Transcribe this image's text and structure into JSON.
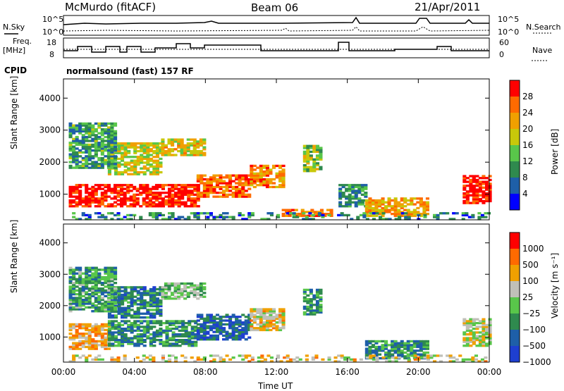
{
  "header": {
    "station": "McMurdo (fitACF)",
    "beam": "Beam 06",
    "date": "21/Apr/2011"
  },
  "summary_panels": {
    "nsky_label": "N.Sky",
    "nsky_ticks": [
      "10^5",
      "10^0"
    ],
    "nsearch_label": "N.Search",
    "nsearch_ticks": [
      "10^5",
      "10^0"
    ],
    "freq_label_1": "Freq.",
    "freq_label_2": "[MHz]",
    "freq_ticks": [
      "18",
      "8"
    ],
    "nave_label": "Nave",
    "nave_ticks": [
      "60",
      "0"
    ],
    "cpid_label": "CPID",
    "cpid_text": "normalsound (fast) 157 RF"
  },
  "chart_data": [
    {
      "type": "heatmap",
      "panel": "power",
      "ylabel": "Slant Range [km]",
      "yticks": [
        "4000",
        "3000",
        "2000",
        "1000"
      ],
      "ylim": [
        200,
        4600
      ],
      "colorbar_label": "Power [dB]",
      "colorbar_ticks": [
        "28",
        "24",
        "20",
        "16",
        "12",
        "8",
        "4"
      ],
      "colors": [
        "#0000ff",
        "#1e5fa8",
        "#2f8a4e",
        "#59c64a",
        "#c8c80a",
        "#f0a000",
        "#ff6a00",
        "#ff0000"
      ],
      "regions": [
        {
          "t": [
            0.3,
            7.5
          ],
          "r": [
            600,
            1300
          ],
          "level": 0.95
        },
        {
          "t": [
            7.5,
            10.5
          ],
          "r": [
            900,
            1600
          ],
          "level": 0.8
        },
        {
          "t": [
            10.5,
            12.3
          ],
          "r": [
            1200,
            1900
          ],
          "level": 0.75
        },
        {
          "t": [
            2.5,
            5.5
          ],
          "r": [
            1600,
            2600
          ],
          "level": 0.55
        },
        {
          "t": [
            0.3,
            3.0
          ],
          "r": [
            1800,
            3200
          ],
          "level": 0.35
        },
        {
          "t": [
            5.5,
            8.0
          ],
          "r": [
            2200,
            2700
          ],
          "level": 0.6
        },
        {
          "t": [
            13.5,
            14.5
          ],
          "r": [
            1700,
            2500
          ],
          "level": 0.5
        },
        {
          "t": [
            15.5,
            17.0
          ],
          "r": [
            600,
            1300
          ],
          "level": 0.3
        },
        {
          "t": [
            17.0,
            20.5
          ],
          "r": [
            300,
            900
          ],
          "level": 0.7
        },
        {
          "t": [
            12.3,
            15.0
          ],
          "r": [
            300,
            500
          ],
          "level": 0.8
        },
        {
          "t": [
            22.5,
            24.0
          ],
          "r": [
            700,
            1600
          ],
          "level": 0.95
        },
        {
          "t": [
            0.3,
            24.0
          ],
          "r": [
            200,
            400
          ],
          "level": 0.25
        }
      ]
    },
    {
      "type": "heatmap",
      "panel": "velocity",
      "xlabel": "Time UT",
      "xticks": [
        "00:00",
        "04:00",
        "08:00",
        "12:00",
        "16:00",
        "20:00",
        "00:00"
      ],
      "xlim": [
        0,
        24
      ],
      "ylabel": "Slant Range [km]",
      "yticks": [
        "4000",
        "3000",
        "2000",
        "1000"
      ],
      "ylim": [
        200,
        4600
      ],
      "colorbar_label": "Velocity [m s⁻¹]",
      "colorbar_ticks": [
        "1000",
        "500",
        "100",
        "25",
        "−25",
        "−100",
        "−500",
        "−1000"
      ],
      "colors": [
        "#1e3fd0",
        "#1e5fa8",
        "#2f8a4e",
        "#59c64a",
        "#c0c0b8",
        "#f0a000",
        "#ff6a00",
        "#ff0000"
      ],
      "regions": [
        {
          "t": [
            0.3,
            2.5
          ],
          "r": [
            600,
            1400
          ],
          "level": 0.7
        },
        {
          "t": [
            2.5,
            7.5
          ],
          "r": [
            700,
            1500
          ],
          "level": 0.3
        },
        {
          "t": [
            7.5,
            10.5
          ],
          "r": [
            900,
            1700
          ],
          "level": 0.2
        },
        {
          "t": [
            10.5,
            12.3
          ],
          "r": [
            1200,
            1900
          ],
          "level": 0.6
        },
        {
          "t": [
            2.5,
            5.5
          ],
          "r": [
            1600,
            2600
          ],
          "level": 0.25
        },
        {
          "t": [
            0.3,
            3.0
          ],
          "r": [
            1800,
            3200
          ],
          "level": 0.35
        },
        {
          "t": [
            5.5,
            8.0
          ],
          "r": [
            2200,
            2700
          ],
          "level": 0.45
        },
        {
          "t": [
            13.5,
            14.5
          ],
          "r": [
            1700,
            2500
          ],
          "level": 0.3
        },
        {
          "t": [
            17.0,
            20.5
          ],
          "r": [
            300,
            900
          ],
          "level": 0.3
        },
        {
          "t": [
            22.5,
            24.0
          ],
          "r": [
            700,
            1600
          ],
          "level": 0.55
        },
        {
          "t": [
            0.3,
            24.0
          ],
          "r": [
            200,
            400
          ],
          "level": 0.6
        }
      ]
    }
  ]
}
